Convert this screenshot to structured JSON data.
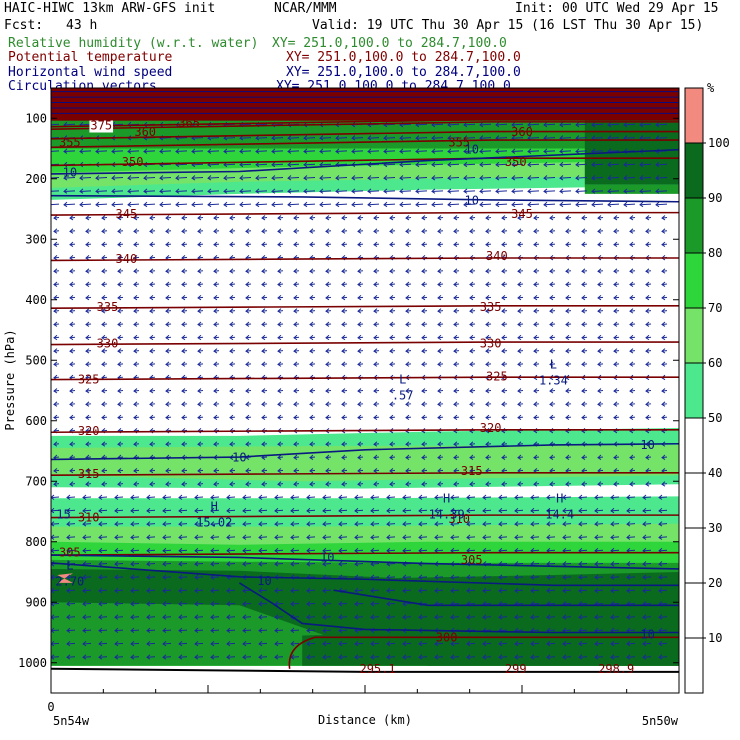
{
  "header": {
    "model": "HAIC-HIWC 13km ARW-GFS init",
    "org": "NCAR/MMM",
    "init": "Init: 00 UTC Wed 29 Apr 15",
    "fcst_label": "Fcst:",
    "fcst_value": "43 h",
    "valid": "Valid: 19 UTC Thu 30 Apr 15 (16 LST Thu 30 Apr 15)"
  },
  "fields": [
    {
      "name": "Relative humidity (w.r.t. water)",
      "xy": "XY= 251.0,100.0 to 284.7,100.0",
      "color": "#2e8b2e"
    },
    {
      "name": "Potential temperature",
      "xy": "XY= 251.0,100.0 to 284.7,100.0",
      "color": "#800000"
    },
    {
      "name": "Horizontal wind speed",
      "xy": "XY= 251.0,100.0 to 284.7,100.0",
      "color": "#000080"
    },
    {
      "name": "Circulation vectors",
      "xy": "XY= 251.0,100.0 to 284.7,100.0",
      "color": "#000080"
    }
  ],
  "chart_data": {
    "type": "cross-section",
    "xlabel": "Distance (km)",
    "ylabel": "Pressure (hPa)",
    "x_origin_label": "0",
    "x_left_label": "5n54w",
    "x_right_label": "5n50w",
    "y_ticks": [
      100,
      200,
      300,
      400,
      500,
      600,
      700,
      800,
      900,
      1000
    ],
    "ylim": [
      1050,
      50
    ],
    "colorbar": {
      "unit": "%",
      "levels": [
        10,
        20,
        30,
        40,
        50,
        60,
        70,
        80,
        90,
        100
      ],
      "bands": [
        {
          "from": 100,
          "to": 110,
          "color": "#f28a80"
        },
        {
          "from": 90,
          "to": 100,
          "color": "#0a6b1e"
        },
        {
          "from": 80,
          "to": 90,
          "color": "#1b9a2a"
        },
        {
          "from": 70,
          "to": 80,
          "color": "#2ed63c"
        },
        {
          "from": 60,
          "to": 70,
          "color": "#74e368"
        },
        {
          "from": 50,
          "to": 60,
          "color": "#4de88e"
        },
        {
          "from": 0,
          "to": 50,
          "color": "#ffffff"
        }
      ]
    },
    "theta_contours": [
      {
        "value": 375,
        "p": 112
      },
      {
        "value": 365,
        "p": 108
      },
      {
        "value": 360,
        "p": 128
      },
      {
        "value": 355,
        "p": 142
      },
      {
        "value": 350,
        "p": 172
      },
      {
        "value": 345,
        "p": 258
      },
      {
        "value": 340,
        "p": 333
      },
      {
        "value": 335,
        "p": 412
      },
      {
        "value": 330,
        "p": 472
      },
      {
        "value": 325,
        "p": 530
      },
      {
        "value": 320,
        "p": 617
      },
      {
        "value": 315,
        "p": 688
      },
      {
        "value": 310,
        "p": 758
      },
      {
        "value": 305,
        "p": 820
      },
      {
        "value": 300,
        "p": 958
      }
    ],
    "theta_labels": [
      {
        "text": "375",
        "x_frac": 0.08,
        "p": 112
      },
      {
        "text": "365",
        "x_frac": 0.22,
        "p": 108
      },
      {
        "text": "360",
        "x_frac": 0.15,
        "p": 123
      },
      {
        "text": "360",
        "x_frac": 0.75,
        "p": 123
      },
      {
        "text": "355",
        "x_frac": 0.03,
        "p": 140
      },
      {
        "text": "355",
        "x_frac": 0.65,
        "p": 140
      },
      {
        "text": "350",
        "x_frac": 0.13,
        "p": 172
      },
      {
        "text": "350",
        "x_frac": 0.74,
        "p": 172
      },
      {
        "text": "345",
        "x_frac": 0.12,
        "p": 258
      },
      {
        "text": "345",
        "x_frac": 0.75,
        "p": 258
      },
      {
        "text": "340",
        "x_frac": 0.12,
        "p": 333
      },
      {
        "text": "340",
        "x_frac": 0.71,
        "p": 328
      },
      {
        "text": "335",
        "x_frac": 0.09,
        "p": 412
      },
      {
        "text": "335",
        "x_frac": 0.7,
        "p": 412
      },
      {
        "text": "330",
        "x_frac": 0.09,
        "p": 472
      },
      {
        "text": "330",
        "x_frac": 0.7,
        "p": 472
      },
      {
        "text": "325",
        "x_frac": 0.06,
        "p": 532
      },
      {
        "text": "325",
        "x_frac": 0.71,
        "p": 527
      },
      {
        "text": "320",
        "x_frac": 0.06,
        "p": 617
      },
      {
        "text": "320",
        "x_frac": 0.7,
        "p": 612
      },
      {
        "text": "315",
        "x_frac": 0.06,
        "p": 688
      },
      {
        "text": "315",
        "x_frac": 0.67,
        "p": 683
      },
      {
        "text": "310",
        "x_frac": 0.06,
        "p": 760
      },
      {
        "text": "310",
        "x_frac": 0.65,
        "p": 762
      },
      {
        "text": "305",
        "x_frac": 0.03,
        "p": 818
      },
      {
        "text": "305",
        "x_frac": 0.67,
        "p": 830
      },
      {
        "text": "300",
        "x_frac": 0.63,
        "p": 958
      },
      {
        "text": "295.1",
        "x_frac": 0.52,
        "p": 1010
      },
      {
        "text": "299",
        "x_frac": 0.74,
        "p": 1010
      },
      {
        "text": "298.9",
        "x_frac": 0.9,
        "p": 1010
      }
    ],
    "wind_labels": [
      {
        "text": "10",
        "x_frac": 0.03,
        "p": 190
      },
      {
        "text": "10",
        "x_frac": 0.67,
        "p": 152
      },
      {
        "text": "10",
        "x_frac": 0.67,
        "p": 236
      },
      {
        "text": "10",
        "x_frac": 0.3,
        "p": 661
      },
      {
        "text": "10",
        "x_frac": 0.95,
        "p": 640
      },
      {
        "text": "15",
        "x_frac": 0.02,
        "p": 755
      },
      {
        "text": "10",
        "x_frac": 0.44,
        "p": 826
      },
      {
        "text": "10",
        "x_frac": 0.34,
        "p": 865
      },
      {
        "text": "10",
        "x_frac": 0.95,
        "p": 953
      }
    ],
    "extrema": [
      {
        "type": "L",
        "value": ".57",
        "x_frac": 0.56,
        "p": 555
      },
      {
        "type": "L",
        "value": "1.34",
        "x_frac": 0.8,
        "p": 530
      },
      {
        "type": "H",
        "value": "15.02",
        "x_frac": 0.26,
        "p": 765
      },
      {
        "type": "H",
        "value": "14.39",
        "x_frac": 0.63,
        "p": 752
      },
      {
        "type": "H",
        "value": "14.4",
        "x_frac": 0.81,
        "p": 752
      },
      {
        "type": "L",
        "value": "2.70",
        "x_frac": 0.03,
        "p": 862
      }
    ]
  }
}
